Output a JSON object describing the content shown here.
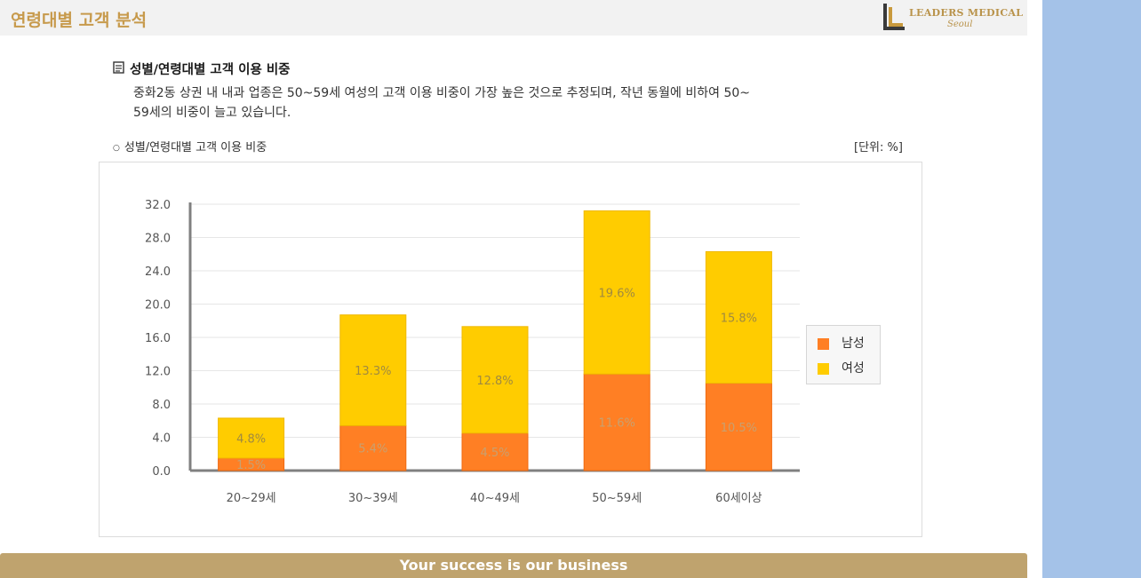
{
  "header": {
    "title": "연령대별 고객 분석"
  },
  "logo": {
    "line1": "LEADERS MEDICAL",
    "line2": "Seoul"
  },
  "section": {
    "heading": "성별/연령대별 고객 이용 비중",
    "summary_line1": "중화2동 상권 내 내과 업종은 50~59세 여성의 고객 이용 비중이 가장 높은 것으로 추정되며, 작년 동월에 비하여 50~",
    "summary_line2": "59세의 비중이 늘고 있습니다."
  },
  "chart_caption": "성별/연령대별 고객 이용 비중",
  "unit_label": "[단위: %]",
  "footer": {
    "text": "Your success is our business"
  },
  "colors": {
    "male": "#ff7f24",
    "female": "#ffcc00",
    "accent": "#c79a4c",
    "footer": "#bfa36e",
    "side_panel": "#a4c2e8"
  },
  "chart_data": {
    "type": "bar",
    "stacked": true,
    "categories": [
      "20~29세",
      "30~39세",
      "40~49세",
      "50~59세",
      "60세이상"
    ],
    "series": [
      {
        "name": "남성",
        "values": [
          1.5,
          5.4,
          4.5,
          11.6,
          10.5
        ],
        "labels": [
          "1.5%",
          "5.4%",
          "4.5%",
          "11.6%",
          "10.5%"
        ]
      },
      {
        "name": "여성",
        "values": [
          4.8,
          13.3,
          12.8,
          19.6,
          15.8
        ],
        "labels": [
          "4.8%",
          "13.3%",
          "12.8%",
          "19.6%",
          "15.8%"
        ]
      }
    ],
    "yticks": [
      "0.0",
      "4.0",
      "8.0",
      "12.0",
      "16.0",
      "20.0",
      "24.0",
      "28.0",
      "32.0"
    ],
    "ylim": [
      0,
      32
    ],
    "grid": true,
    "legend_position": "right"
  }
}
